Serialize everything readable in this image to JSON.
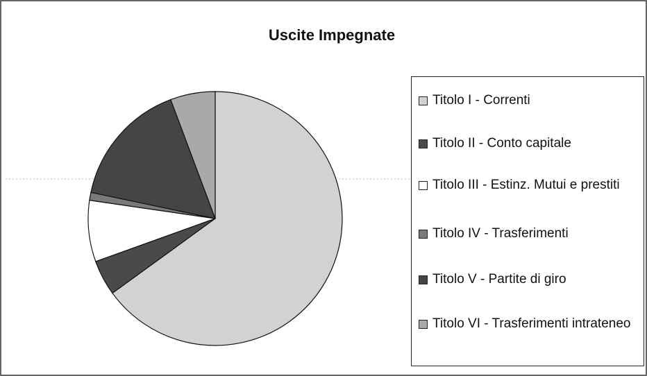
{
  "chart_data": {
    "type": "pie",
    "title": "Uscite Impegnate",
    "categories": [
      "Titolo I - Correnti",
      "Titolo II - Conto capitale",
      "Titolo III - Estinz. Mutui e prestiti",
      "Titolo IV - Trasferimenti",
      "Titolo V - Partite di giro",
      "Titolo VI - Trasferimenti intrateneo"
    ],
    "values": [
      65,
      4.5,
      7.8,
      1,
      16,
      5.7
    ],
    "colors": [
      "#d2d2d2",
      "#4a4a4a",
      "#ffffff",
      "#7a7a7a",
      "#454545",
      "#a9a9a9"
    ],
    "legend": "right"
  }
}
